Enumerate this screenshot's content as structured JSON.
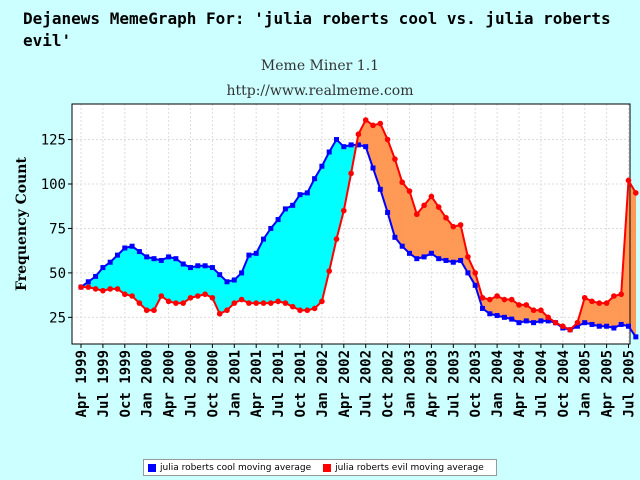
{
  "title": "Dejanews MemeGraph For: 'julia roberts cool vs. julia roberts evil'",
  "subtitle": "Meme Miner 1.1",
  "url": "http://www.realmeme.com",
  "chart_data": {
    "type": "line",
    "ylabel": "Frequency Count",
    "xlabel": "",
    "ylim": [
      10,
      145
    ],
    "yticks": [
      25,
      50,
      75,
      100,
      125
    ],
    "grid": true,
    "legend_position": "bottom",
    "fill_between": {
      "colors": {
        "cool_above": "#00ffff",
        "evil_above": "#ff9955"
      }
    },
    "categories": [
      "Apr 1999",
      "May 1999",
      "Jun 1999",
      "Jul 1999",
      "Aug 1999",
      "Sep 1999",
      "Oct 1999",
      "Nov 1999",
      "Dec 1999",
      "Jan 2000",
      "Feb 2000",
      "Mar 2000",
      "Apr 2000",
      "May 2000",
      "Jun 2000",
      "Jul 2000",
      "Aug 2000",
      "Sep 2000",
      "Oct 2000",
      "Nov 2000",
      "Dec 2000",
      "Jan 2001",
      "Feb 2001",
      "Mar 2001",
      "Apr 2001",
      "May 2001",
      "Jun 2001",
      "Jul 2001",
      "Aug 2001",
      "Sep 2001",
      "Oct 2001",
      "Nov 2001",
      "Dec 2001",
      "Jan 2002",
      "Feb 2002",
      "Mar 2002",
      "Apr 2002",
      "May 2002",
      "Jun 2002",
      "Jul 2002",
      "Aug 2002",
      "Sep 2002",
      "Oct 2002",
      "Nov 2002",
      "Dec 2002",
      "Jan 2003",
      "Feb 2003",
      "Mar 2003",
      "Apr 2003",
      "May 2003",
      "Jun 2003",
      "Jul 2003",
      "Aug 2003",
      "Sep 2003",
      "Oct 2003",
      "Nov 2003",
      "Dec 2003",
      "Jan 2004",
      "Feb 2004",
      "Mar 2004",
      "Apr 2004",
      "May 2004",
      "Jun 2004",
      "Jul 2004",
      "Aug 2004",
      "Sep 2004",
      "Oct 2004",
      "Nov 2004",
      "Dec 2004",
      "Jan 2005",
      "Feb 2005",
      "Mar 2005",
      "Apr 2005",
      "May 2005",
      "Jun 2005",
      "Jul 2005",
      "Aug 2005"
    ],
    "tick_labels": [
      "Apr 1999",
      "Jul 1999",
      "Oct 1999",
      "Jan 2000",
      "Apr 2000",
      "Jul 2000",
      "Oct 2000",
      "Jan 2001",
      "Apr 2001",
      "Jul 2001",
      "Oct 2001",
      "Jan 2002",
      "Apr 2002",
      "Jul 2002",
      "Oct 2002",
      "Jan 2003",
      "Apr 2003",
      "Jul 2003",
      "Oct 2003",
      "Jan 2004",
      "Apr 2004",
      "Jul 2004",
      "Oct 2004",
      "Jan 2005",
      "Apr 2005",
      "Jul 2005"
    ],
    "series": [
      {
        "name": "julia roberts cool moving average",
        "color": "#0000ff",
        "values": [
          42,
          45,
          48,
          53,
          56,
          60,
          64,
          65,
          62,
          59,
          58,
          57,
          59,
          58,
          55,
          53,
          54,
          54,
          53,
          49,
          45,
          46,
          50,
          60,
          61,
          69,
          75,
          80,
          86,
          88,
          94,
          95,
          103,
          110,
          118,
          125,
          121,
          122,
          122,
          121,
          109,
          97,
          84,
          70,
          65,
          61,
          58,
          59,
          61,
          58,
          57,
          56,
          57,
          50,
          43,
          30,
          27,
          26,
          25,
          24,
          22,
          23,
          22,
          23,
          23,
          22,
          19,
          18,
          20,
          22,
          21,
          20,
          20,
          19,
          21,
          20,
          14
        ]
      },
      {
        "name": "julia roberts evil moving average",
        "color": "#ff0000",
        "values": [
          42,
          42,
          41,
          40,
          41,
          41,
          38,
          37,
          33,
          29,
          29,
          37,
          34,
          33,
          33,
          36,
          37,
          38,
          36,
          27,
          29,
          33,
          35,
          33,
          33,
          33,
          33,
          34,
          33,
          31,
          29,
          29,
          30,
          34,
          51,
          69,
          85,
          106,
          128,
          136,
          133,
          134,
          125,
          114,
          101,
          96,
          83,
          88,
          93,
          87,
          81,
          76,
          77,
          59,
          50,
          36,
          35,
          37,
          35,
          35,
          32,
          32,
          29,
          29,
          25,
          22,
          20,
          18,
          22,
          36,
          34,
          33,
          33,
          37,
          38,
          102,
          95
        ]
      }
    ]
  },
  "legend": {
    "items": [
      {
        "label": "julia roberts cool moving average",
        "color": "#0000ff"
      },
      {
        "label": "julia roberts evil moving average",
        "color": "#ff0000"
      }
    ]
  }
}
